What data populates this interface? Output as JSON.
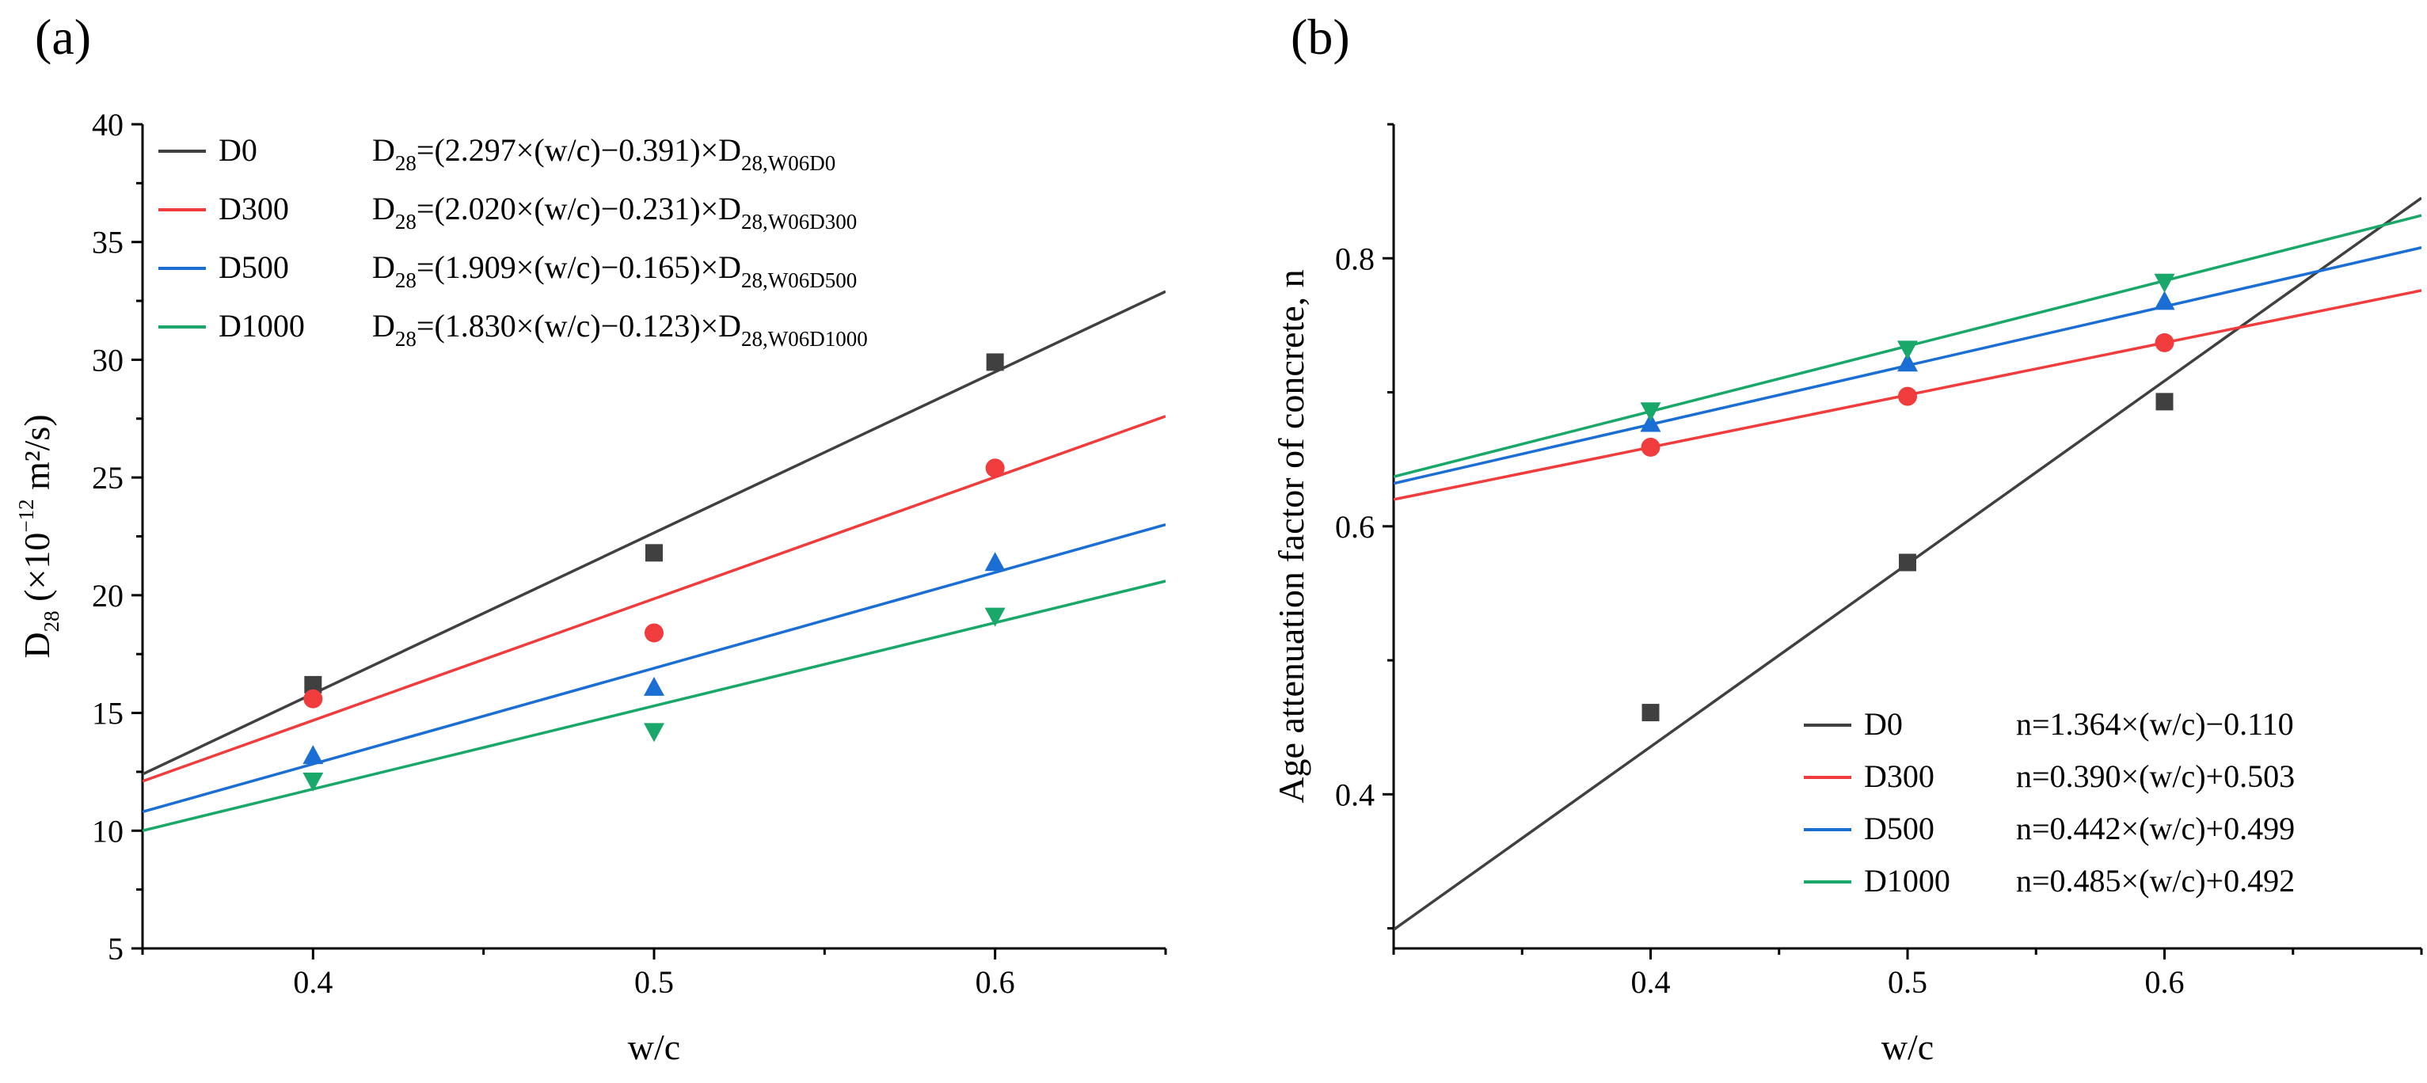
{
  "colors": {
    "D0": "#404040",
    "D300": "#f03c3c",
    "D500": "#1a6ed4",
    "D1000": "#1aa86a"
  },
  "chart_data": [
    {
      "type": "scatter",
      "panel_label": "(a)",
      "xlabel": "w/c",
      "ylabel": {
        "base": "D",
        "sub": "28",
        "rest": " (×10",
        "sup": "−12",
        "unit": " m²/s)"
      },
      "xlim": [
        0.35,
        0.65
      ],
      "ylim": [
        5,
        40
      ],
      "xticks": [
        0.4,
        0.5,
        0.6
      ],
      "yticks": [
        5,
        10,
        15,
        20,
        25,
        30,
        35,
        40
      ],
      "legend_position": "top-left",
      "series": [
        {
          "name": "D0",
          "marker": "square",
          "x": [
            0.4,
            0.5,
            0.6
          ],
          "y": [
            16.2,
            21.8,
            29.9
          ],
          "fit": [
            [
              0.35,
              12.4
            ],
            [
              0.65,
              32.9
            ]
          ],
          "equation": {
            "lhs": "D",
            "lhs_sub": "28",
            "body": "=(2.297×(w/c)−0.391)×D",
            "body_sub": "28",
            "ref_sub": ",W06D0"
          }
        },
        {
          "name": "D300",
          "marker": "circle",
          "x": [
            0.4,
            0.5,
            0.6
          ],
          "y": [
            15.6,
            18.4,
            25.4
          ],
          "fit": [
            [
              0.35,
              12.1
            ],
            [
              0.65,
              27.6
            ]
          ],
          "equation": {
            "lhs": "D",
            "lhs_sub": "28",
            "body": "=(2.020×(w/c)−0.231)×D",
            "body_sub": "28",
            "ref_sub": ",W06D300"
          }
        },
        {
          "name": "D500",
          "marker": "triangle-up",
          "x": [
            0.4,
            0.5,
            0.6
          ],
          "y": [
            13.2,
            16.1,
            21.4
          ],
          "fit": [
            [
              0.35,
              10.8
            ],
            [
              0.65,
              23.0
            ]
          ],
          "equation": {
            "lhs": "D",
            "lhs_sub": "28",
            "body": "=(1.909×(w/c)−0.165)×D",
            "body_sub": "28",
            "ref_sub": ",W06D500"
          }
        },
        {
          "name": "D1000",
          "marker": "triangle-down",
          "x": [
            0.4,
            0.5,
            0.6
          ],
          "y": [
            12.1,
            14.2,
            19.1
          ],
          "fit": [
            [
              0.35,
              10.0
            ],
            [
              0.65,
              20.6
            ]
          ],
          "equation": {
            "lhs": "D",
            "lhs_sub": "28",
            "body": "=(1.830×(w/c)−0.123)×D",
            "body_sub": "28",
            "ref_sub": ",W06D1000"
          }
        }
      ]
    },
    {
      "type": "scatter",
      "panel_label": "(b)",
      "xlabel": "w/c",
      "ylabel": "Age attenuation factor of concrete,  n",
      "xlim": [
        0.3,
        0.7
      ],
      "ylim": [
        0.285,
        0.9
      ],
      "xticks": [
        0.4,
        0.5,
        0.6
      ],
      "yticks": [
        0.4,
        0.6,
        0.8
      ],
      "legend_position": "bottom-right",
      "series": [
        {
          "name": "D0",
          "marker": "square",
          "x": [
            0.4,
            0.5,
            0.6
          ],
          "y": [
            0.461,
            0.573,
            0.693
          ],
          "fit": [
            [
              0.3,
              0.299
            ],
            [
              0.7,
              0.845
            ]
          ],
          "equation": "n=1.364×(w/c)−0.110"
        },
        {
          "name": "D300",
          "marker": "circle",
          "x": [
            0.4,
            0.5,
            0.6
          ],
          "y": [
            0.659,
            0.697,
            0.737
          ],
          "fit": [
            [
              0.3,
              0.62
            ],
            [
              0.7,
              0.776
            ]
          ],
          "equation": "n=0.390×(w/c)+0.503"
        },
        {
          "name": "D500",
          "marker": "triangle-up",
          "x": [
            0.4,
            0.5,
            0.6
          ],
          "y": [
            0.677,
            0.722,
            0.768
          ],
          "fit": [
            [
              0.3,
              0.632
            ],
            [
              0.7,
              0.808
            ]
          ],
          "equation": "n=0.442×(w/c)+0.499"
        },
        {
          "name": "D1000",
          "marker": "triangle-down",
          "x": [
            0.4,
            0.5,
            0.6
          ],
          "y": [
            0.686,
            0.732,
            0.782
          ],
          "fit": [
            [
              0.3,
              0.637
            ],
            [
              0.7,
              0.832
            ]
          ],
          "equation": "n=0.485×(w/c)+0.492"
        }
      ]
    }
  ]
}
